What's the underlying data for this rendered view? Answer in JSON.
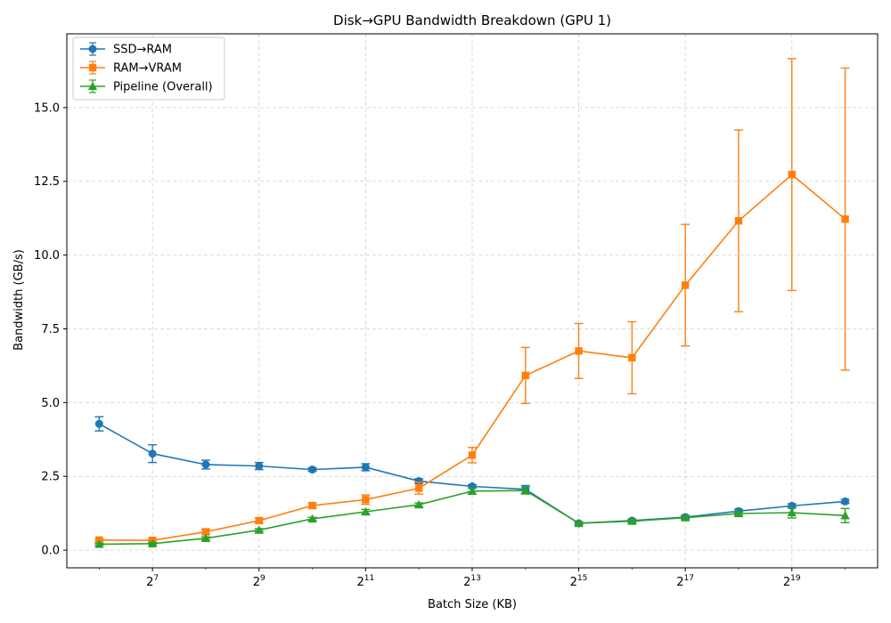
{
  "chart_data": {
    "type": "line",
    "title": "Disk→GPU Bandwidth Breakdown (GPU 1)",
    "xlabel": "Batch Size (KB)",
    "ylabel": "Bandwidth (GB/s)",
    "x_scale": "log2",
    "x": [
      64,
      128,
      256,
      512,
      1024,
      2048,
      4096,
      8192,
      16384,
      32768,
      65536,
      131072,
      262144,
      524288,
      1048576
    ],
    "xlim": [
      42,
      1600000
    ],
    "ylim": [
      -0.6,
      17.5
    ],
    "x_ticks": [
      {
        "value": 128,
        "base": "2",
        "exp": "7"
      },
      {
        "value": 512,
        "base": "2",
        "exp": "9"
      },
      {
        "value": 2048,
        "base": "2",
        "exp": "11"
      },
      {
        "value": 8192,
        "base": "2",
        "exp": "13"
      },
      {
        "value": 32768,
        "base": "2",
        "exp": "15"
      },
      {
        "value": 131072,
        "base": "2",
        "exp": "17"
      },
      {
        "value": 524288,
        "base": "2",
        "exp": "19"
      }
    ],
    "y_ticks": [
      {
        "value": 0,
        "label": "0.0"
      },
      {
        "value": 2.5,
        "label": "2.5"
      },
      {
        "value": 5,
        "label": "5.0"
      },
      {
        "value": 7.5,
        "label": "7.5"
      },
      {
        "value": 10,
        "label": "10.0"
      },
      {
        "value": 12.5,
        "label": "12.5"
      },
      {
        "value": 15,
        "label": "15.0"
      }
    ],
    "grid": true,
    "legend_position": "top-left",
    "series": [
      {
        "name": "SSD→RAM",
        "color": "#1f77b4",
        "marker": "circle",
        "values": [
          4.28,
          3.27,
          2.9,
          2.85,
          2.73,
          2.81,
          2.34,
          2.16,
          2.06,
          0.91,
          1.0,
          1.12,
          1.32,
          1.5,
          1.65
        ],
        "errors": [
          0.24,
          0.3,
          0.15,
          0.12,
          0.06,
          0.12,
          0.08,
          0.06,
          0.13,
          0.05,
          0.05,
          0.06,
          0.07,
          0.07,
          0.07
        ]
      },
      {
        "name": "RAM→VRAM",
        "color": "#ff7f0e",
        "marker": "square",
        "values": [
          0.34,
          0.33,
          0.62,
          1.0,
          1.51,
          1.71,
          2.1,
          3.22,
          5.92,
          6.75,
          6.52,
          8.98,
          11.16,
          12.73,
          11.22
        ],
        "errors": [
          0.04,
          0.04,
          0.08,
          0.08,
          0.1,
          0.16,
          0.2,
          0.26,
          0.95,
          0.93,
          1.22,
          2.06,
          3.08,
          3.93,
          5.12
        ]
      },
      {
        "name": "Pipeline (Overall)",
        "color": "#2ca02c",
        "marker": "triangle",
        "values": [
          0.2,
          0.22,
          0.4,
          0.68,
          1.06,
          1.3,
          1.54,
          2.0,
          2.02,
          0.91,
          0.98,
          1.1,
          1.24,
          1.27,
          1.17
        ],
        "errors": [
          0.03,
          0.03,
          0.05,
          0.05,
          0.05,
          0.08,
          0.06,
          0.1,
          0.12,
          0.05,
          0.05,
          0.06,
          0.06,
          0.18,
          0.24
        ]
      }
    ]
  }
}
